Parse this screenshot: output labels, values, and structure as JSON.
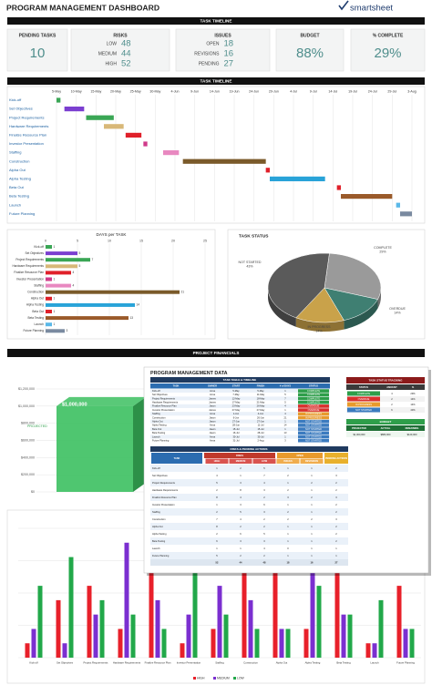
{
  "header": {
    "title": "PROGRAM MANAGEMENT DASHBOARD",
    "logo": "smartsheet"
  },
  "kpis": {
    "title": "TASK TIMELINE",
    "boxes": [
      {
        "label": "PENDING TASKS",
        "value": 10
      },
      {
        "label": "RISKS",
        "items": [
          {
            "label": "LOW",
            "value": 48
          },
          {
            "label": "MEDIUM",
            "value": 44
          },
          {
            "label": "HIGH",
            "value": 52
          }
        ]
      },
      {
        "label": "ISSUES",
        "items": [
          {
            "label": "OPEN",
            "value": 18
          },
          {
            "label": "REVISIONS",
            "value": 16
          },
          {
            "label": "PENDING",
            "value": 27
          }
        ]
      },
      {
        "label": "BUDGET",
        "value": "88%"
      },
      {
        "label": "% COMPLETE",
        "value": "29%"
      }
    ]
  },
  "chart_data": [
    {
      "type": "gantt",
      "title": "TASK TIMELINE",
      "categories": [
        "Kick-off",
        "Set Objectives",
        "Project Requirements",
        "Hardware Requirements",
        "Finalize Resource Plan",
        "Investor Presentation",
        "Staffing",
        "Construction",
        "Alpha Out",
        "Alpha Testing",
        "Beta Out",
        "Beta Testing",
        "Launch",
        "Future Planning"
      ],
      "start": [
        0,
        2,
        7.5,
        12,
        17.5,
        22,
        27,
        32,
        53,
        54,
        71,
        72,
        86,
        87
      ],
      "values": [
        1,
        5,
        7,
        5,
        4,
        1,
        4,
        21,
        1,
        14,
        1,
        13,
        1,
        3
      ],
      "colors": [
        "#3aa655",
        "#7b3fd0",
        "#3aa655",
        "#d8b878",
        "#e0202a",
        "#d03a8a",
        "#e888c0",
        "#7a5a2a",
        "#e0202a",
        "#29a3d8",
        "#e0202a",
        "#9a5a2a",
        "#5ab8e8",
        "#7a8aa0"
      ],
      "xlim": [
        0,
        90
      ],
      "xticks": [
        {
          "value": 0,
          "label": "5-May"
        },
        {
          "value": 5,
          "label": "10-May"
        },
        {
          "value": 10,
          "label": "15-May"
        },
        {
          "value": 15,
          "label": "20-May"
        },
        {
          "value": 20,
          "label": "25-May"
        },
        {
          "value": 25,
          "label": "30-May"
        },
        {
          "value": 30,
          "label": "4-Jun"
        },
        {
          "value": 35,
          "label": "9-Jun"
        },
        {
          "value": 40,
          "label": "14-Jun"
        },
        {
          "value": 45,
          "label": "19-Jun"
        },
        {
          "value": 50,
          "label": "24-Jun"
        },
        {
          "value": 55,
          "label": "29-Jun"
        },
        {
          "value": 60,
          "label": "4-Jul"
        },
        {
          "value": 65,
          "label": "9-Jul"
        },
        {
          "value": 70,
          "label": "14-Jul"
        },
        {
          "value": 75,
          "label": "19-Jul"
        },
        {
          "value": 80,
          "label": "24-Jul"
        },
        {
          "value": 85,
          "label": "29-Jul"
        },
        {
          "value": 90,
          "label": "3-Aug"
        }
      ],
      "grid": true
    },
    {
      "type": "hbar",
      "title": "DAYS per TASK",
      "categories": [
        "Kick-off",
        "Set Objectives",
        "Project Requirements",
        "Hardware Requirements",
        "Finalize Resource Plan",
        "Investor Presentation",
        "Staffing",
        "Construction",
        "Alpha Out",
        "Alpha Testing",
        "Beta Out",
        "Beta Testing",
        "Launch",
        "Future Planning"
      ],
      "values": [
        1,
        5,
        7,
        5,
        4,
        1,
        4,
        21,
        1,
        14,
        1,
        13,
        1,
        3
      ],
      "colors": [
        "#3aa655",
        "#7b3fd0",
        "#3aa655",
        "#d8b878",
        "#e0202a",
        "#d03a8a",
        "#e888c0",
        "#7a5a2a",
        "#e0202a",
        "#29a3d8",
        "#e0202a",
        "#9a5a2a",
        "#5ab8e8",
        "#7a8aa0"
      ],
      "xlim": [
        0,
        25
      ],
      "xticks": [
        0,
        5,
        10,
        15,
        20,
        25
      ],
      "grid": true
    },
    {
      "type": "pie",
      "title": "TASK STATUS",
      "categories": [
        "COMPLETE",
        "OVERDUE",
        "IN PROGRESS",
        "NOT STARTED"
      ],
      "values": [
        29,
        14,
        14,
        43
      ],
      "value_labels": [
        "29%",
        "14%",
        "14%",
        "43%"
      ],
      "colors": [
        "#9a9a9a",
        "#3f7f72",
        "#c9a24a",
        "#5a5a5a"
      ]
    },
    {
      "type": "bar3d",
      "title": "PROJECT FINANCIALS",
      "categories": [
        "PROJECTED"
      ],
      "values": [
        1000000
      ],
      "value_labels": [
        "$1,000,000"
      ],
      "color": "#3cc060",
      "ylim": [
        0,
        1200000
      ],
      "yticks": [
        {
          "value": 0,
          "label": "$0"
        },
        {
          "value": 200000,
          "label": "$200,000"
        },
        {
          "value": 400000,
          "label": "$400,000"
        },
        {
          "value": 600000,
          "label": "$600,000"
        },
        {
          "value": 800000,
          "label": "$800,000"
        },
        {
          "value": 1000000,
          "label": "$1,000,000"
        },
        {
          "value": 1200000,
          "label": "$1,200,000"
        }
      ],
      "grid": true
    },
    {
      "type": "grouped_bar",
      "categories": [
        "Kick-off",
        "Set Objectives",
        "Project Requirements",
        "Hardware Requirements",
        "Finalize Resource Plan",
        "Investor Presentation",
        "Staffing",
        "Construction",
        "Alpha Out",
        "Alpha Testing",
        "Beta Testing",
        "Launch",
        "Future Planning"
      ],
      "series": [
        {
          "name": "HIGH",
          "color": "#e8202a",
          "values": [
            1,
            4,
            5,
            2,
            8,
            1,
            2,
            7,
            8,
            2,
            6,
            1,
            5
          ]
        },
        {
          "name": "MEDIUM",
          "color": "#7b2fd0",
          "values": [
            2,
            1,
            3,
            8,
            4,
            3,
            5,
            4,
            2,
            6,
            3,
            1,
            2
          ]
        },
        {
          "name": "LOW",
          "color": "#22a84a",
          "values": [
            5,
            7,
            4,
            3,
            2,
            6,
            3,
            2,
            2,
            5,
            3,
            4,
            2
          ]
        }
      ],
      "ylim": [
        0,
        9
      ]
    }
  ],
  "data_panel": {
    "title": "PROGRAM MANAGEMENT DATA",
    "task_table": {
      "title": "TASK TABLE & TIMELINE",
      "columns": [
        "TASK",
        "OWNER",
        "START",
        "FINISH",
        "# of DAYS",
        "STATUS"
      ],
      "rows": [
        {
          "owner": "Anna",
          "start": "5-May",
          "finish": "5-May",
          "status": "COMPLETE"
        },
        {
          "owner": "Anna",
          "start": "7-May",
          "finish": "11-May",
          "status": "COMPLETE"
        },
        {
          "owner": "James",
          "start": "12-May",
          "finish": "18-May",
          "status": "COMPLETE"
        },
        {
          "owner": "James",
          "start": "17-May",
          "finish": "21-May",
          "status": "COMPLETE"
        },
        {
          "owner": "Jason",
          "start": "23-May",
          "finish": "26-May",
          "status": "OVERDUE"
        },
        {
          "owner": "James",
          "start": "27-May",
          "finish": "27-May",
          "status": "OVERDUE"
        },
        {
          "owner": "Anna",
          "start": "1-Jun",
          "finish": "4-Jun",
          "status": "IN PROGRESS"
        },
        {
          "owner": "Jason",
          "start": "6-Jun",
          "finish": "26-Jun",
          "status": "IN PROGRESS"
        },
        {
          "owner": "Jason",
          "start": "27-Jun",
          "finish": "27-Jun",
          "status": "NOT STARTED"
        },
        {
          "owner": "Anna",
          "start": "28-Jun",
          "finish": "11-Jul",
          "status": "NOT STARTED"
        },
        {
          "owner": "Jason",
          "start": "15-Jul",
          "finish": "15-Jul",
          "status": "NOT STARTED"
        },
        {
          "owner": "Jason",
          "start": "16-Jul",
          "finish": "28-Jul",
          "status": "NOT STARTED"
        },
        {
          "owner": "Anna",
          "start": "30-Jul",
          "finish": "30-Jul",
          "status": "NOT STARTED"
        },
        {
          "owner": "Anna",
          "start": "31-Jul",
          "finish": "2-Aug",
          "status": "NOT STARTED"
        }
      ]
    },
    "status_tracking": {
      "title": "TASK STATUS TRACKING",
      "columns": [
        "STATUS",
        "AMOUNT",
        "%"
      ],
      "rows": [
        [
          "COMPLETE",
          4,
          "29%"
        ],
        [
          "OVERDUE",
          2,
          "14%"
        ],
        [
          "IN PROGRESS",
          2,
          "14%"
        ],
        [
          "NOT STARTED",
          6,
          "43%"
        ]
      ],
      "colors": [
        "#2e9e4a",
        "#d9302c",
        "#e89a2c",
        "#3b7bbf"
      ]
    },
    "budget": {
      "title": "BUDGET",
      "columns": [
        "PROJECTED",
        "ACTUAL",
        "REMAINING"
      ],
      "values": [
        "$1,000,000",
        "$880,000",
        "$120,000"
      ]
    },
    "risks_table": {
      "title": "RISKS & PENDING ACTIONS",
      "group_headers": [
        "TASK",
        "RISKS",
        "OPEN",
        "PENDING ACTIONS"
      ],
      "columns": [
        "HIGH",
        "MEDIUM",
        "LOW",
        "ISSUES",
        "REVISIONS"
      ],
      "rows": [
        [
          1,
          1,
          2
        ],
        [
          2,
          1,
          3
        ],
        [
          1,
          2,
          2
        ],
        [
          2,
          1,
          2
        ],
        [
          3,
          2,
          3
        ],
        [
          1,
          1,
          2
        ],
        [
          2,
          1,
          2
        ],
        [
          2,
          2,
          3
        ],
        [
          1,
          1,
          2
        ],
        [
          1,
          1,
          2
        ],
        [
          1,
          1,
          2
        ],
        [
          0,
          1,
          1
        ],
        [
          1,
          1,
          1
        ]
      ],
      "totals": [
        52,
        44,
        48,
        18,
        16,
        27
      ]
    }
  }
}
